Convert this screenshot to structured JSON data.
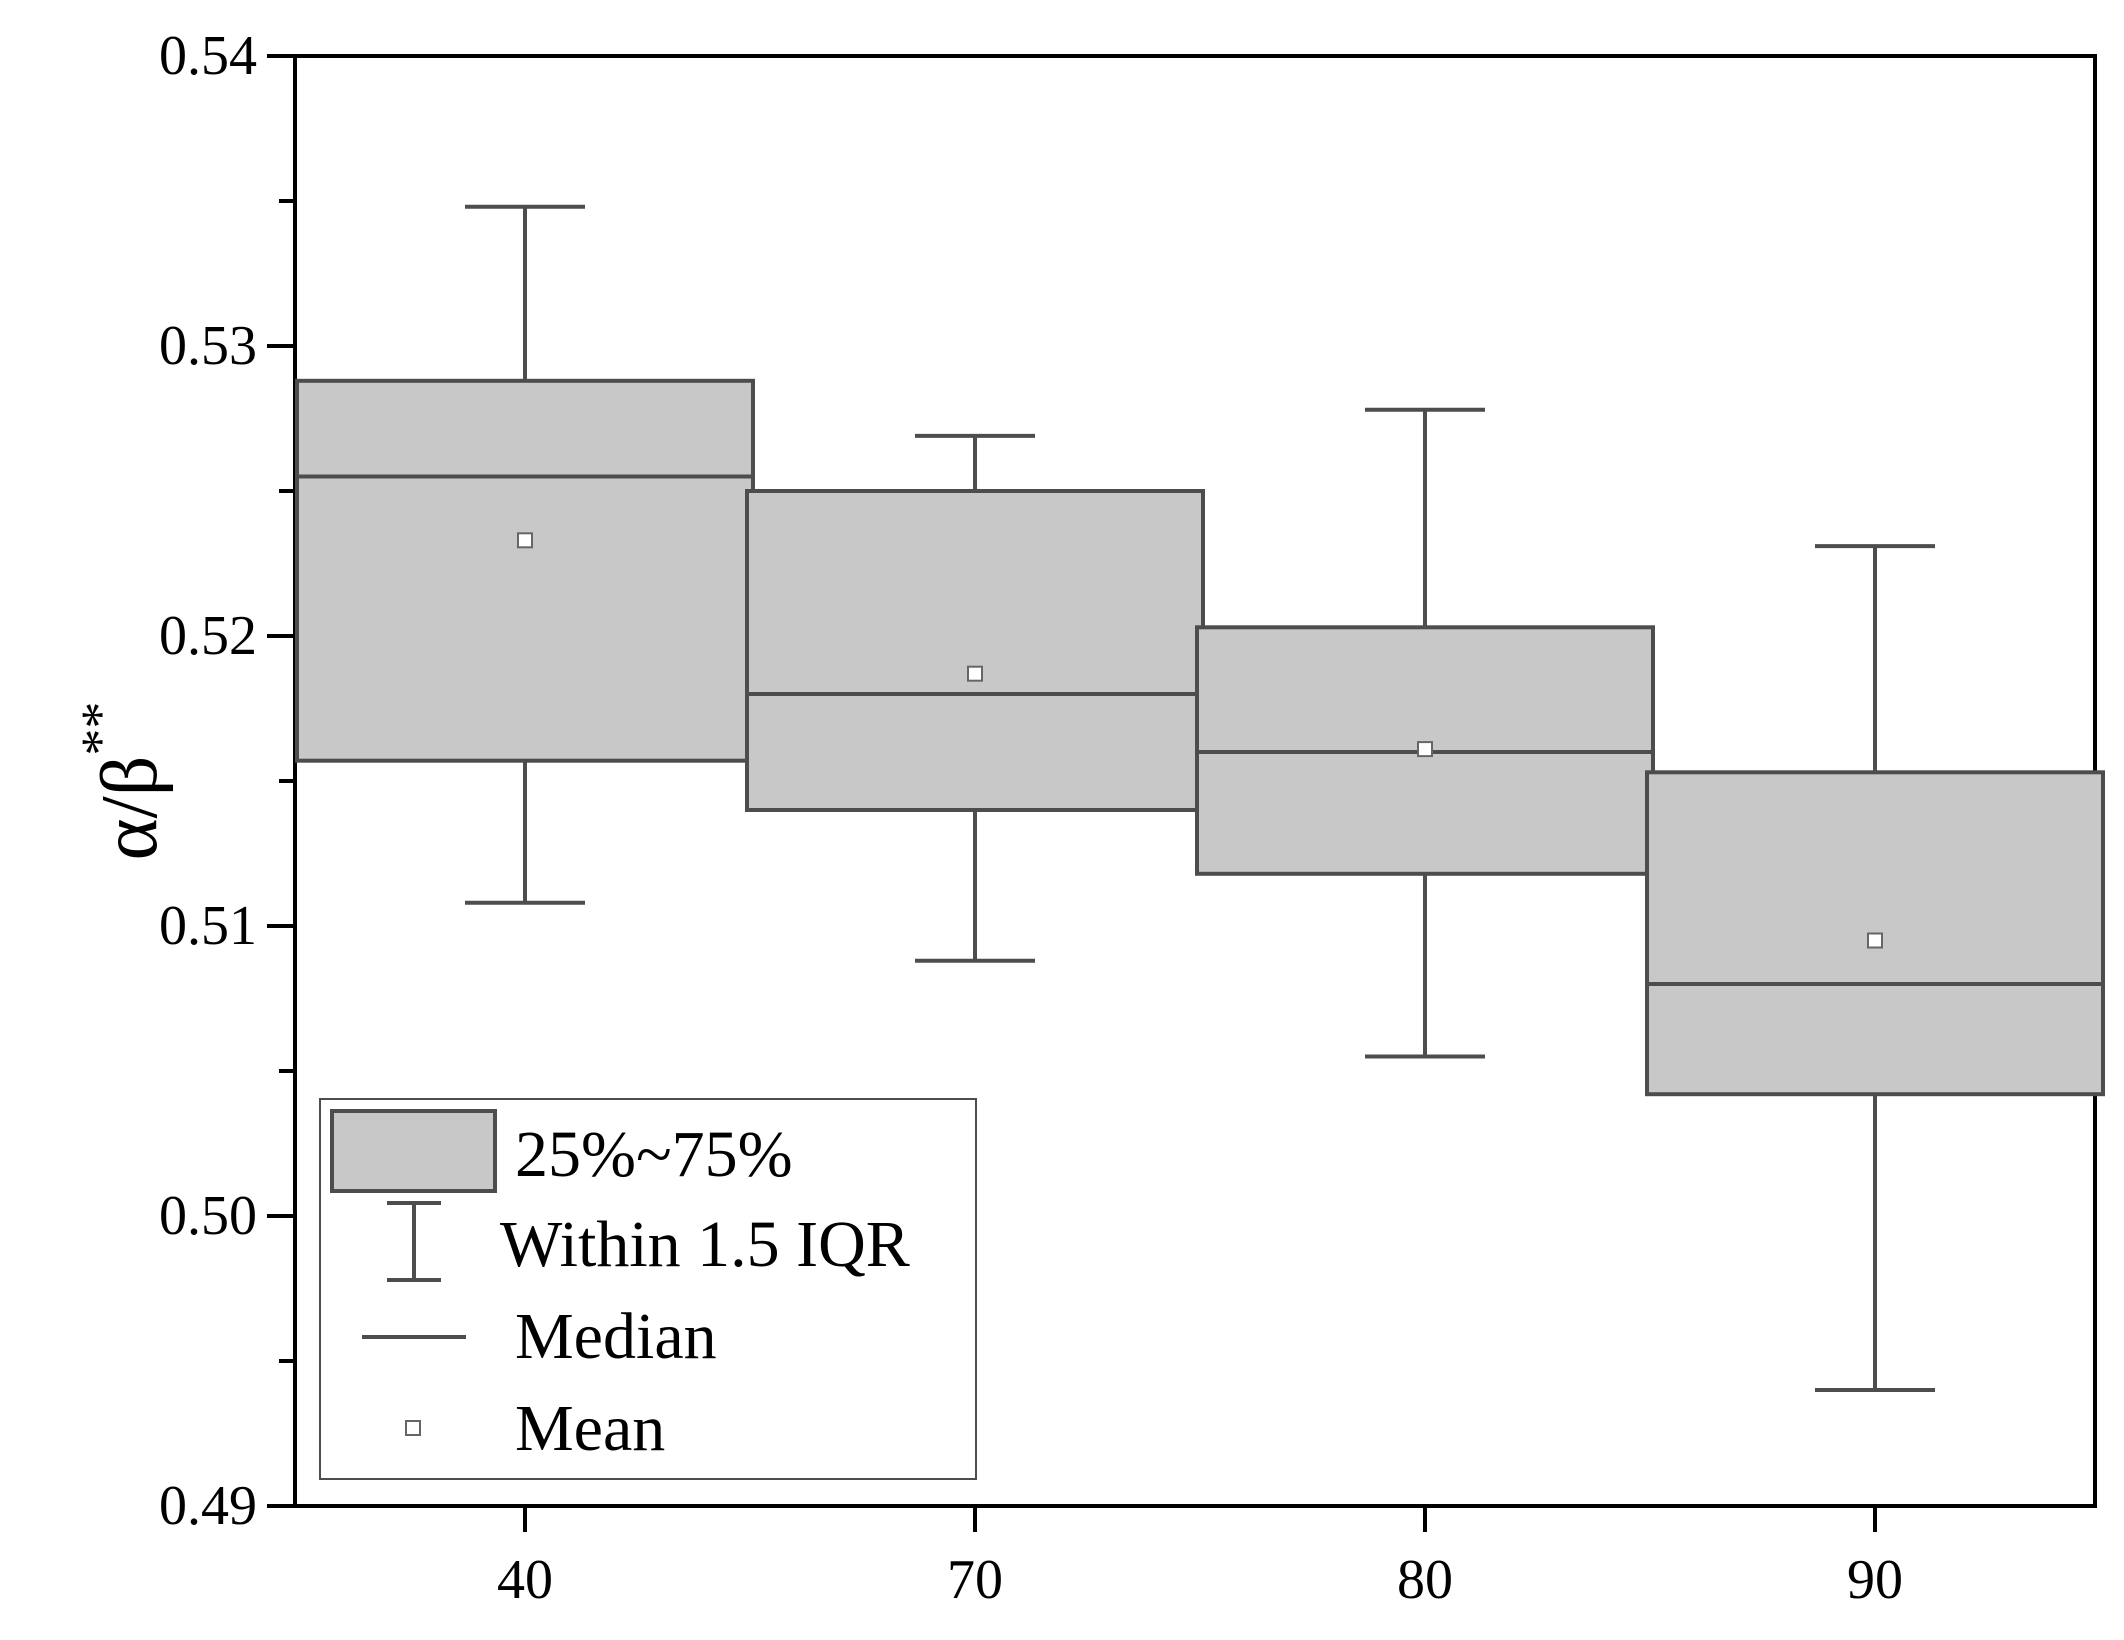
{
  "chart_data": {
    "type": "box",
    "title": "",
    "xlabel": "",
    "ylabel": "α/β**",
    "ylabel_main": "α/β",
    "ylabel_sup": "**",
    "ylim": [
      0.49,
      0.54
    ],
    "yticks": [
      0.49,
      0.5,
      0.51,
      0.52,
      0.53,
      0.54
    ],
    "ytick_labels": [
      "0.49",
      "0.50",
      "0.51",
      "0.52",
      "0.53",
      "0.54"
    ],
    "categories": [
      "40",
      "70",
      "80",
      "90"
    ],
    "boxes": [
      {
        "category": "40",
        "whisker_low": 0.5108,
        "q1": 0.5157,
        "median": 0.5255,
        "q3": 0.5288,
        "whisker_high": 0.5348,
        "mean": 0.5233
      },
      {
        "category": "70",
        "whisker_low": 0.5088,
        "q1": 0.514,
        "median": 0.518,
        "q3": 0.525,
        "whisker_high": 0.5269,
        "mean": 0.5187
      },
      {
        "category": "80",
        "whisker_low": 0.5055,
        "q1": 0.5118,
        "median": 0.516,
        "q3": 0.5203,
        "whisker_high": 0.5278,
        "mean": 0.5161
      },
      {
        "category": "90",
        "whisker_low": 0.494,
        "q1": 0.5042,
        "median": 0.508,
        "q3": 0.5153,
        "whisker_high": 0.5231,
        "mean": 0.5095
      }
    ],
    "legend": [
      {
        "key": "box",
        "label": "25%~75%"
      },
      {
        "key": "whisker",
        "label": "Within 1.5 IQR"
      },
      {
        "key": "median",
        "label": "Median"
      },
      {
        "key": "mean",
        "label": "Mean"
      }
    ],
    "legend_position": "bottom-left",
    "colors": {
      "box_fill": "#c8c8c8",
      "box_stroke": "#4d4d4d",
      "axis": "#000000",
      "mean_marker": "#666666"
    }
  }
}
